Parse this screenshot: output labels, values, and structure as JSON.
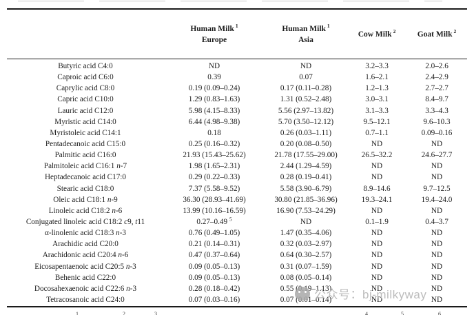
{
  "table": {
    "headers": [
      {
        "title": "",
        "sup": "",
        "line2": ""
      },
      {
        "title": "Human Milk",
        "sup": "1",
        "line2": "Europe"
      },
      {
        "title": "Human Milk",
        "sup": "1",
        "line2": "Asia"
      },
      {
        "title": "Cow Milk",
        "sup": "2",
        "line2": ""
      },
      {
        "title": "Goat Milk",
        "sup": "2",
        "line2": ""
      }
    ],
    "rows": [
      {
        "label": "Butyric acid C4:0",
        "europe": "ND",
        "asia": "ND",
        "cow": "3.2–3.3",
        "goat": "2.0–2.6"
      },
      {
        "label": "Caproic acid C6:0",
        "europe": "0.39",
        "asia": "0.07",
        "cow": "1.6–2.1",
        "goat": "2.4–2.9"
      },
      {
        "label": "Caprylic acid C8:0",
        "europe": "0.19 (0.09–0.24)",
        "asia": "0.17 (0.11–0.28)",
        "cow": "1.2–1.3",
        "goat": "2.7–2.7"
      },
      {
        "label": "Capric acid C10:0",
        "europe": "1.29 (0.83–1.63)",
        "asia": "1.31 (0.52–2.48)",
        "cow": "3.0–3.1",
        "goat": "8.4–9.7"
      },
      {
        "label": "Lauric acid C12:0",
        "europe": "5.98 (4.15–8.33)",
        "asia": "5.56 (2.97–13.82)",
        "cow": "3.1–3.3",
        "goat": "3.3–4.3"
      },
      {
        "label": "Myristic acid C14:0",
        "europe": "6.44 (4.98–9.38)",
        "asia": "5.70 (3.50–12.12)",
        "cow": "9.5–12.1",
        "goat": "9.6–10.3"
      },
      {
        "label": "Myristoleic acid C14:1",
        "europe": "0.18",
        "asia": "0.26 (0.03–1.11)",
        "cow": "0.7–1.1",
        "goat": "0.09–0.16"
      },
      {
        "label": "Pentadecanoic acid C15:0",
        "europe": "0.25 (0.16–0.32)",
        "asia": "0.20 (0.08–0.50)",
        "cow": "ND",
        "goat": "ND"
      },
      {
        "label": "Palmitic acid C16:0",
        "europe": "21.93 (15.43–25.62)",
        "asia": "21.78 (17.55–29.00)",
        "cow": "26.5–32.2",
        "goat": "24.6–27.7"
      },
      {
        "label": "Palmitoleic acid C16:1 *n*-7",
        "europe": "1.98 (1.65–2.31)",
        "asia": "2.44 (1.29–4.59)",
        "cow": "ND",
        "goat": "ND"
      },
      {
        "label": "Heptadecanoic acid C17:0",
        "europe": "0.29 (0.22–0.33)",
        "asia": "0.28 (0.19–0.41)",
        "cow": "ND",
        "goat": "ND"
      },
      {
        "label": "Stearic acid C18:0",
        "europe": "7.37 (5.58–9.52)",
        "asia": "5.58 (3.90–6.79)",
        "cow": "8.9–14.6",
        "goat": "9.7–12.5"
      },
      {
        "label": "Oleic acid C18:1 *n*-9",
        "europe": "36.30 (28.93–41.69)",
        "asia": "30.80 (21.85–36.96)",
        "cow": "19.3–24.1",
        "goat": "19.4–24.0"
      },
      {
        "label": "Linoleic acid C18:2 *n*-6",
        "europe": "13.99 (10.16–16.59)",
        "asia": "16.90 (7.53–24.29)",
        "cow": "ND",
        "goat": "ND"
      },
      {
        "label": "Conjugated linoleic acid C18:2 *c*9, *t*11",
        "europe": "0.27–0.49 ^5^",
        "asia": "ND",
        "cow": "0.1–1.9",
        "goat": "0.4–3.7"
      },
      {
        "label": "α-linolenic acid C18:3 *n*-3",
        "europe": "0.76 (0.49–1.05)",
        "asia": "1.47 (0.35–4.06)",
        "cow": "ND",
        "goat": "ND"
      },
      {
        "label": "Arachidic acid C20:0",
        "europe": "0.21 (0.14–0.31)",
        "asia": "0.32 (0.03–2.97)",
        "cow": "ND",
        "goat": "ND"
      },
      {
        "label": "Arachidonic acid C20:4 *n*-6",
        "europe": "0.47 (0.37–0.64)",
        "asia": "0.64 (0.30–2.57)",
        "cow": "ND",
        "goat": "ND"
      },
      {
        "label": "Eicosapentaenoic acid C20:5 *n*-3",
        "europe": "0.09 (0.05–0.13)",
        "asia": "0.31 (0.07–1.59)",
        "cow": "ND",
        "goat": "ND"
      },
      {
        "label": "Behenic acid C22:0",
        "europe": "0.09 (0.05–0.13)",
        "asia": "0.08 (0.05–0.14)",
        "cow": "ND",
        "goat": "ND"
      },
      {
        "label": "Docosahexaenoic acid C22:6 *n*-3",
        "europe": "0.28 (0.18–0.42)",
        "asia": "0.55 (0.19–1.13)",
        "cow": "ND",
        "goat": "ND"
      },
      {
        "label": "Tetracosanoic acid C24:0",
        "europe": "0.07 (0.03–0.16)",
        "asia": "0.07 (0.01–0.14)",
        "cow": "ND",
        "goat": "ND"
      }
    ]
  },
  "footnote": {
    "visible_markers": [
      "1",
      "2",
      "3",
      "4",
      "5",
      "6"
    ]
  },
  "watermark": {
    "text": "公众号：bj-milkyway"
  }
}
